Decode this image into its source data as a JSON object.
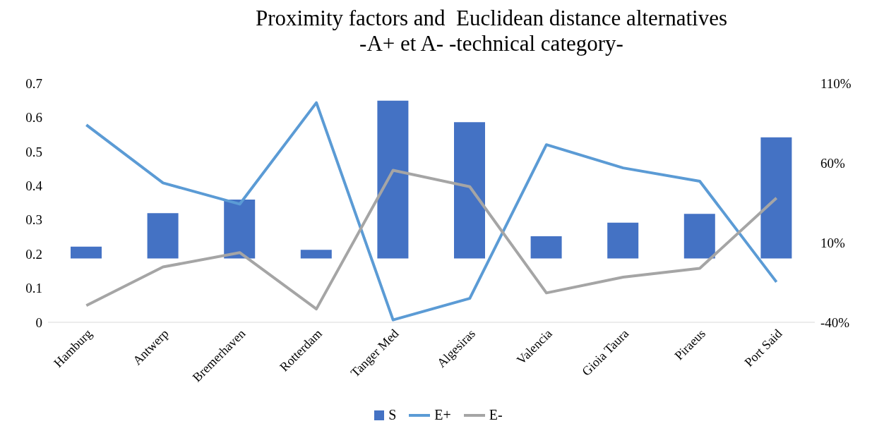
{
  "chart_data": {
    "type": "bar",
    "title": "Proximity factors and  Euclidean distance alternatives",
    "subtitle": "-A+ et A- -technical category-",
    "categories": [
      "Hamburg",
      "Antwerp",
      "Bremerhaven",
      "Rotterdam",
      "Tanger Med",
      "Algesiras",
      "Valencia",
      "Gioia Taura",
      "Piraeus",
      "Port Said"
    ],
    "series": [
      {
        "name": "S",
        "axis": "y2",
        "color": "#4472c4",
        "values": [
          7.5,
          28.5,
          37,
          5.5,
          99,
          85.5,
          14,
          22.5,
          28,
          76
        ]
      },
      {
        "name": "E+",
        "type": "line",
        "color": "#5b9bd5",
        "values": [
          0.578,
          0.408,
          0.346,
          0.643,
          0.007,
          0.07,
          0.52,
          0.452,
          0.413,
          0.118
        ]
      },
      {
        "name": "E-",
        "type": "line",
        "color": "#a5a5a5",
        "values": [
          0.049,
          0.162,
          0.204,
          0.039,
          0.445,
          0.397,
          0.086,
          0.132,
          0.158,
          0.364
        ]
      }
    ],
    "ylim": [
      0,
      0.7
    ],
    "yticks": [
      0,
      0.1,
      0.2,
      0.3,
      0.4,
      0.5,
      0.6,
      0.7
    ],
    "y2lim": [
      -40,
      110
    ],
    "y2ticks": [
      {
        "value": -40,
        "label": "-40%"
      },
      {
        "value": 10,
        "label": "10%"
      },
      {
        "value": 60,
        "label": "60%"
      },
      {
        "value": 110,
        "label": "110%"
      }
    ],
    "grid": false,
    "legend": "bottom",
    "marker": "none"
  }
}
